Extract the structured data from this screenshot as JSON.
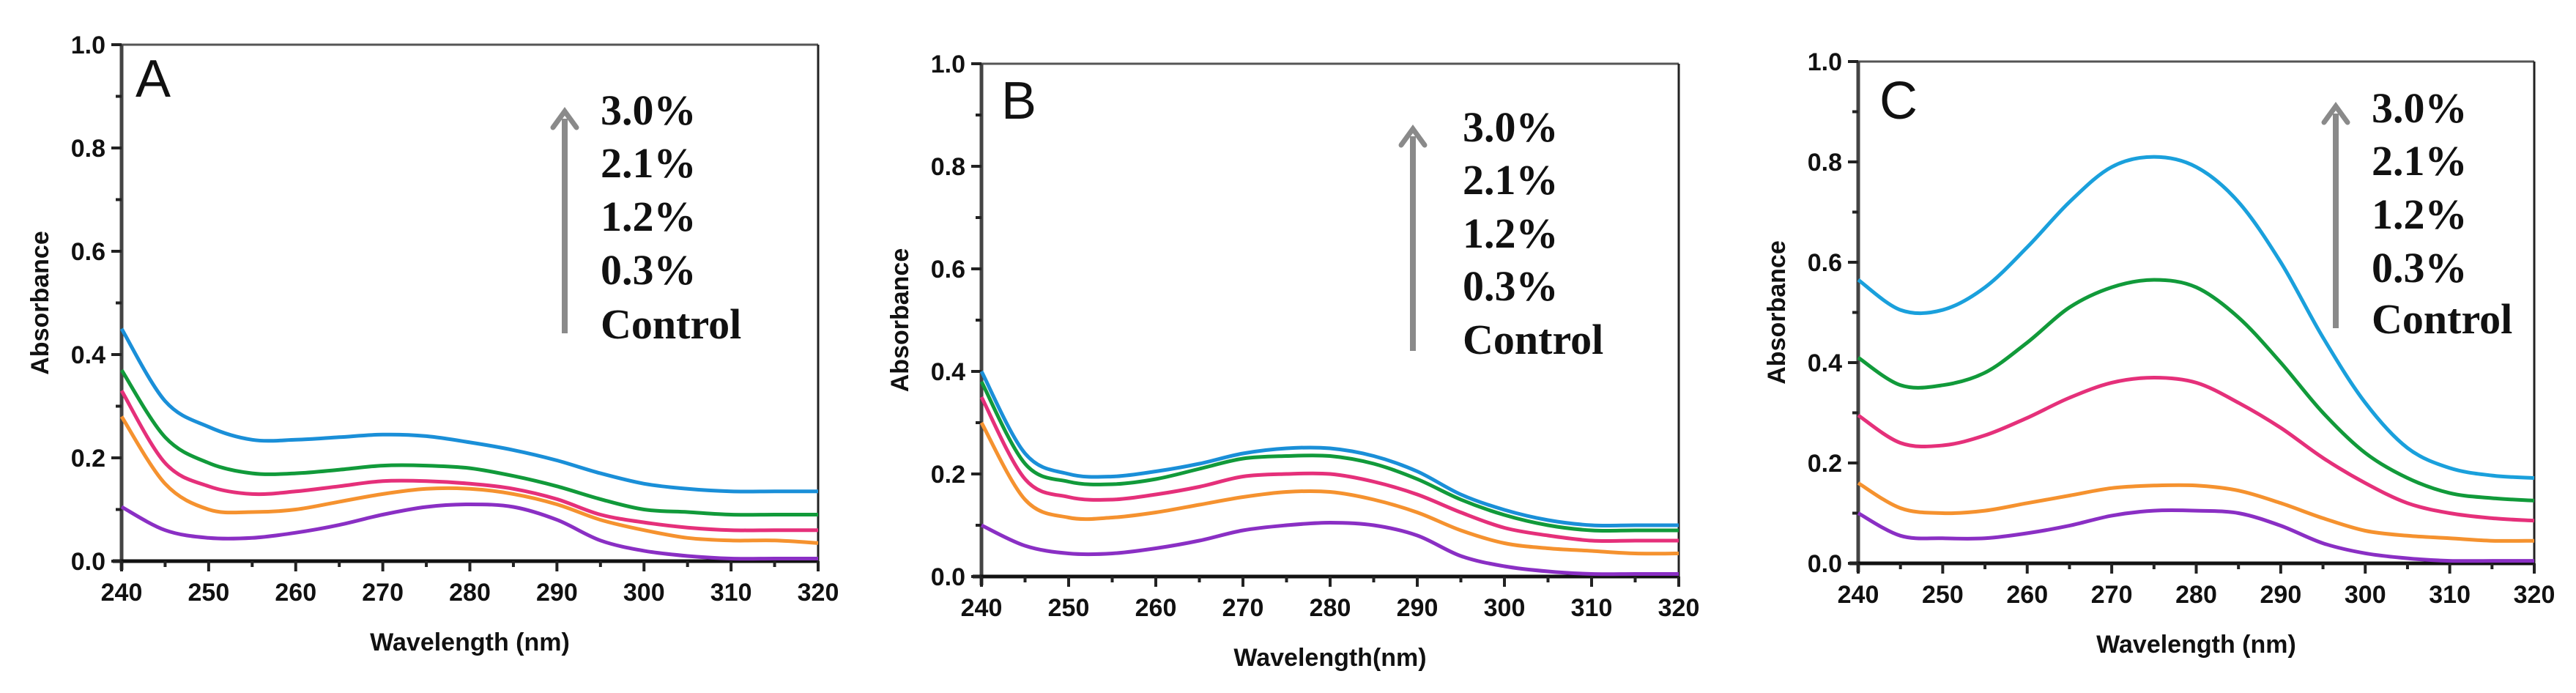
{
  "chart_data": [
    {
      "panel": "A",
      "type": "line",
      "xlabel": "Wavelength (nm)",
      "ylabel": "Absorbance",
      "xlim": [
        240,
        320
      ],
      "ylim": [
        0,
        1.0
      ],
      "xticks": [
        "240",
        "250",
        "260",
        "270",
        "280",
        "290",
        "300",
        "310",
        "320"
      ],
      "yticks": [
        "0.0",
        "0.2",
        "0.4",
        "0.6",
        "0.8",
        "1.0"
      ],
      "grid": false,
      "legend_labels": [
        "3.0%",
        "2.1%",
        "1.2%",
        "0.3%",
        "Control"
      ],
      "legend_note": "arrow pointing up beside labels",
      "x": [
        240,
        245,
        250,
        255,
        260,
        265,
        270,
        275,
        280,
        285,
        290,
        295,
        300,
        305,
        310,
        315,
        320
      ],
      "series": [
        {
          "name": "3.0%",
          "color": "#1a8fd8",
          "values": [
            0.45,
            0.31,
            0.26,
            0.235,
            0.235,
            0.24,
            0.245,
            0.242,
            0.23,
            0.215,
            0.195,
            0.17,
            0.15,
            0.14,
            0.135,
            0.135,
            0.135
          ]
        },
        {
          "name": "2.1%",
          "color": "#119a3a",
          "values": [
            0.37,
            0.24,
            0.19,
            0.17,
            0.17,
            0.177,
            0.185,
            0.185,
            0.18,
            0.165,
            0.145,
            0.12,
            0.1,
            0.095,
            0.09,
            0.09,
            0.09
          ]
        },
        {
          "name": "1.2%",
          "color": "#e5307a",
          "values": [
            0.33,
            0.19,
            0.145,
            0.13,
            0.135,
            0.145,
            0.155,
            0.155,
            0.15,
            0.14,
            0.12,
            0.09,
            0.075,
            0.065,
            0.06,
            0.06,
            0.06
          ]
        },
        {
          "name": "0.3%",
          "color": "#f5922f",
          "values": [
            0.28,
            0.15,
            0.1,
            0.095,
            0.1,
            0.115,
            0.13,
            0.14,
            0.14,
            0.13,
            0.11,
            0.08,
            0.06,
            0.045,
            0.04,
            0.04,
            0.035
          ]
        },
        {
          "name": "Control",
          "color": "#8a2fc4",
          "values": [
            0.105,
            0.06,
            0.045,
            0.045,
            0.055,
            0.07,
            0.09,
            0.105,
            0.11,
            0.105,
            0.08,
            0.04,
            0.02,
            0.01,
            0.005,
            0.005,
            0.005
          ]
        }
      ]
    },
    {
      "panel": "B",
      "type": "line",
      "xlabel": "Wavelength(nm)",
      "ylabel": "Absorbance",
      "xlim": [
        240,
        320
      ],
      "ylim": [
        0,
        1.0
      ],
      "xticks": [
        "240",
        "250",
        "260",
        "270",
        "280",
        "290",
        "300",
        "310",
        "320"
      ],
      "yticks": [
        "0.0",
        "0.2",
        "0.4",
        "0.6",
        "0.8",
        "1.0"
      ],
      "grid": false,
      "legend_labels": [
        "3.0%",
        "2.1%",
        "1.2%",
        "0.3%",
        "Control"
      ],
      "legend_note": "arrow pointing up beside labels",
      "x": [
        240,
        245,
        250,
        255,
        260,
        265,
        270,
        275,
        280,
        285,
        290,
        295,
        300,
        305,
        310,
        315,
        320
      ],
      "series": [
        {
          "name": "3.0%",
          "color": "#1a8fd8",
          "values": [
            0.4,
            0.24,
            0.2,
            0.195,
            0.205,
            0.22,
            0.24,
            0.25,
            0.25,
            0.235,
            0.205,
            0.16,
            0.13,
            0.11,
            0.1,
            0.1,
            0.1
          ]
        },
        {
          "name": "2.1%",
          "color": "#119a3a",
          "values": [
            0.38,
            0.22,
            0.185,
            0.18,
            0.19,
            0.21,
            0.23,
            0.235,
            0.235,
            0.22,
            0.19,
            0.15,
            0.12,
            0.1,
            0.09,
            0.09,
            0.09
          ]
        },
        {
          "name": "1.2%",
          "color": "#e5307a",
          "values": [
            0.35,
            0.19,
            0.155,
            0.15,
            0.16,
            0.175,
            0.195,
            0.2,
            0.2,
            0.185,
            0.16,
            0.125,
            0.095,
            0.08,
            0.07,
            0.07,
            0.07
          ]
        },
        {
          "name": "0.3%",
          "color": "#f5922f",
          "values": [
            0.3,
            0.15,
            0.115,
            0.115,
            0.125,
            0.14,
            0.155,
            0.165,
            0.165,
            0.15,
            0.125,
            0.09,
            0.065,
            0.055,
            0.05,
            0.045,
            0.045
          ]
        },
        {
          "name": "Control",
          "color": "#8a2fc4",
          "values": [
            0.1,
            0.06,
            0.045,
            0.045,
            0.055,
            0.07,
            0.09,
            0.1,
            0.105,
            0.1,
            0.08,
            0.04,
            0.02,
            0.01,
            0.005,
            0.005,
            0.005
          ]
        }
      ]
    },
    {
      "panel": "C",
      "type": "line",
      "xlabel": "Wavelength (nm)",
      "ylabel": "Absorbance",
      "xlim": [
        240,
        320
      ],
      "ylim": [
        0,
        1.0
      ],
      "xticks": [
        "240",
        "250",
        "260",
        "270",
        "280",
        "290",
        "300",
        "310",
        "320"
      ],
      "yticks": [
        "0.0",
        "0.2",
        "0.4",
        "0.6",
        "0.8",
        "1.0"
      ],
      "grid": false,
      "legend_labels": [
        "3.0%",
        "2.1%",
        "1.2%",
        "0.3%",
        "Control"
      ],
      "legend_note": "arrow pointing up beside labels",
      "x": [
        240,
        245,
        250,
        255,
        260,
        265,
        270,
        275,
        280,
        285,
        290,
        295,
        300,
        305,
        310,
        315,
        320
      ],
      "series": [
        {
          "name": "3.0%",
          "color": "#1aa0dc",
          "values": [
            0.565,
            0.505,
            0.505,
            0.55,
            0.63,
            0.72,
            0.79,
            0.81,
            0.79,
            0.72,
            0.6,
            0.45,
            0.32,
            0.23,
            0.19,
            0.175,
            0.17
          ]
        },
        {
          "name": "2.1%",
          "color": "#119a3a",
          "values": [
            0.41,
            0.355,
            0.355,
            0.38,
            0.44,
            0.51,
            0.55,
            0.565,
            0.55,
            0.49,
            0.4,
            0.3,
            0.22,
            0.17,
            0.14,
            0.13,
            0.125
          ]
        },
        {
          "name": "1.2%",
          "color": "#e5307a",
          "values": [
            0.295,
            0.24,
            0.235,
            0.255,
            0.29,
            0.33,
            0.36,
            0.37,
            0.36,
            0.32,
            0.27,
            0.21,
            0.16,
            0.12,
            0.1,
            0.09,
            0.085
          ]
        },
        {
          "name": "0.3%",
          "color": "#f5922f",
          "values": [
            0.16,
            0.11,
            0.1,
            0.105,
            0.12,
            0.135,
            0.15,
            0.155,
            0.155,
            0.145,
            0.12,
            0.09,
            0.065,
            0.055,
            0.05,
            0.045,
            0.045
          ]
        },
        {
          "name": "Control",
          "color": "#8a2fc4",
          "values": [
            0.1,
            0.055,
            0.05,
            0.05,
            0.06,
            0.075,
            0.095,
            0.105,
            0.105,
            0.1,
            0.075,
            0.04,
            0.02,
            0.01,
            0.005,
            0.005,
            0.005
          ]
        }
      ]
    }
  ]
}
